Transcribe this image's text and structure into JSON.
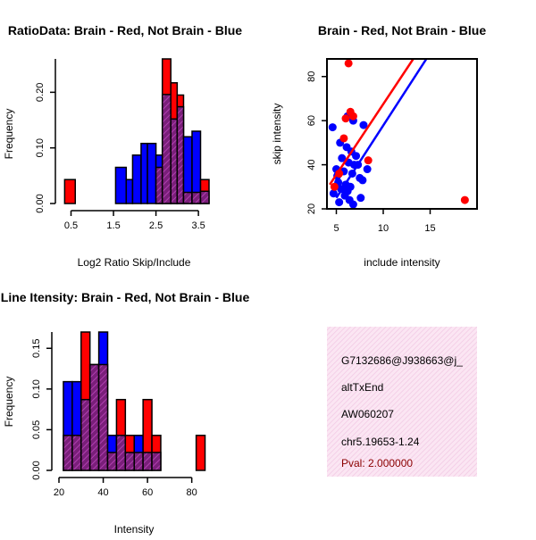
{
  "colors": {
    "red": "#ff0000",
    "blue": "#0000ff",
    "purple": "#8b1a8b",
    "panel_bg": "#f8dff0",
    "pval": "#8b0000"
  },
  "chart_data": [
    {
      "type": "bar",
      "title": "RatioData: Brain - Red, Not Brain - Blue",
      "xlabel": "Log2 Ratio Skip/Include",
      "ylabel": "Frequency",
      "xlim": [
        0.3,
        3.75
      ],
      "ylim": [
        0,
        0.26
      ],
      "xticks": [
        0.5,
        1.5,
        2.5,
        3.5
      ],
      "xtick_labels": [
        "0.5",
        "1.5",
        "2.5",
        "3.5"
      ],
      "yticks": [
        0,
        0.1,
        0.2
      ],
      "ytick_labels": [
        "0.00",
        "0.10",
        "0.20"
      ],
      "bin_edges": [
        0.35,
        0.6,
        1.55,
        1.8,
        1.95,
        2.15,
        2.3,
        2.5,
        2.65,
        2.85,
        3.0,
        3.15,
        3.35,
        3.55,
        3.75
      ],
      "series": [
        {
          "name": "Brain",
          "color": "red",
          "values": [
            0.043,
            0,
            0,
            0,
            0,
            0,
            0,
            0.065,
            0.26,
            0.217,
            0.195,
            0.02,
            0.02,
            0.043
          ]
        },
        {
          "name": "Not Brain",
          "color": "blue",
          "values": [
            0,
            0,
            0.065,
            0.043,
            0.087,
            0.108,
            0.108,
            0.087,
            0.196,
            0.152,
            0.174,
            0.12,
            0.13,
            0.022
          ]
        }
      ]
    },
    {
      "type": "scatter",
      "title": "Brain - Red, Not Brain - Blue",
      "xlabel": "include intensity",
      "ylabel": "skip intensity",
      "xlim": [
        4,
        20
      ],
      "ylim": [
        20,
        88
      ],
      "xticks": [
        5,
        10,
        15
      ],
      "yticks": [
        20,
        40,
        60,
        80
      ],
      "series": [
        {
          "name": "Brain",
          "color": "red",
          "points": [
            [
              6.3,
              86
            ],
            [
              5.3,
              36
            ],
            [
              5.8,
              52
            ],
            [
              6.8,
              62
            ],
            [
              6.5,
              64
            ],
            [
              6.0,
              61
            ],
            [
              8.4,
              42
            ],
            [
              18.7,
              24
            ],
            [
              4.8,
              30
            ]
          ],
          "fit": [
            [
              4.3,
              31
            ],
            [
              13.2,
              88
            ]
          ]
        },
        {
          "name": "Not Brain",
          "color": "blue",
          "points": [
            [
              4.6,
              57
            ],
            [
              6.2,
              62
            ],
            [
              6.8,
              60
            ],
            [
              7.9,
              58
            ],
            [
              5.4,
              50
            ],
            [
              6.1,
              48
            ],
            [
              6.6,
              46
            ],
            [
              7.1,
              44
            ],
            [
              5.6,
              43
            ],
            [
              6.3,
              41
            ],
            [
              7.3,
              40
            ],
            [
              8.3,
              38
            ],
            [
              5.0,
              38
            ],
            [
              5.8,
              37
            ],
            [
              6.7,
              36
            ],
            [
              7.5,
              34
            ],
            [
              5.2,
              32
            ],
            [
              6.0,
              31
            ],
            [
              6.5,
              30
            ],
            [
              5.5,
              29
            ],
            [
              6.2,
              28
            ],
            [
              4.7,
              27
            ],
            [
              5.9,
              26
            ],
            [
              7.6,
              25
            ],
            [
              6.4,
              24
            ],
            [
              5.3,
              23
            ],
            [
              6.8,
              22
            ],
            [
              5.1,
              35
            ],
            [
              6.9,
              40
            ],
            [
              7.8,
              33
            ]
          ],
          "fit": [
            [
              5.0,
              25
            ],
            [
              14.6,
              88
            ]
          ]
        }
      ]
    },
    {
      "type": "bar",
      "title": "Line Itensity: Brain - Red, Not Brain - Blue",
      "xlabel": "Intensity",
      "ylabel": "Frequency",
      "xlim": [
        20,
        87
      ],
      "ylim": [
        0,
        0.17
      ],
      "xticks": [
        20,
        40,
        60,
        80
      ],
      "xtick_labels": [
        "20",
        "40",
        "60",
        "80"
      ],
      "yticks": [
        0,
        0.05,
        0.1,
        0.15
      ],
      "ytick_labels": [
        "0.00",
        "0.05",
        "0.10",
        "0.15"
      ],
      "bin_edges": [
        22,
        26,
        30,
        34,
        38,
        42,
        46,
        50,
        54,
        58,
        62,
        66,
        82,
        86
      ],
      "series": [
        {
          "name": "Brain",
          "color": "red",
          "values": [
            0.043,
            0.043,
            0.17,
            0.13,
            0.13,
            0.022,
            0.087,
            0.043,
            0.022,
            0.087,
            0.043,
            0,
            0.043
          ]
        },
        {
          "name": "Not Brain",
          "color": "blue",
          "values": [
            0.109,
            0.109,
            0.087,
            0.13,
            0.17,
            0.043,
            0.043,
            0.022,
            0.043,
            0.022,
            0.022,
            0,
            0
          ]
        }
      ]
    }
  ],
  "info_panel": {
    "id": "G7132686@J938663@j_",
    "event": "altTxEnd",
    "accession": "AW060207",
    "location": "chr5.19653-1.24",
    "pval": "Pval: 2.000000"
  }
}
